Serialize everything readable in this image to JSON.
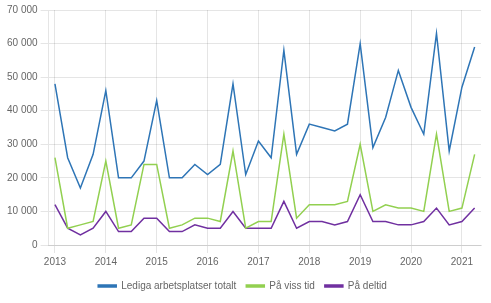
{
  "chart_data": {
    "type": "line",
    "categories": [
      "2013",
      null,
      null,
      null,
      "2014",
      null,
      null,
      null,
      "2015",
      null,
      null,
      null,
      "2016",
      null,
      null,
      null,
      "2017",
      null,
      null,
      null,
      "2018",
      null,
      null,
      null,
      "2019",
      null,
      null,
      null,
      "2020",
      null,
      null,
      null,
      "2021",
      null
    ],
    "series": [
      {
        "name": "Lediga arbetsplatser totalt",
        "color": "#2e75b6",
        "values": [
          48000,
          26000,
          17000,
          27000,
          46000,
          20000,
          20000,
          25000,
          43000,
          20000,
          20000,
          24000,
          21000,
          24000,
          48000,
          21000,
          31000,
          26000,
          58000,
          27000,
          36000,
          35000,
          34000,
          36000,
          60000,
          29000,
          38000,
          52000,
          41000,
          33000,
          63000,
          28000,
          47000,
          59000
        ]
      },
      {
        "name": "På viss tid",
        "color": "#92d050",
        "values": [
          26000,
          5000,
          6000,
          7000,
          25000,
          5000,
          6000,
          24000,
          24000,
          5000,
          6000,
          8000,
          8000,
          7000,
          28000,
          5000,
          7000,
          7000,
          33000,
          8000,
          12000,
          12000,
          12000,
          13000,
          30000,
          10000,
          12000,
          11000,
          11000,
          10000,
          33000,
          10000,
          11000,
          27000
        ]
      },
      {
        "name": "På deltid",
        "color": "#7030a0",
        "values": [
          12000,
          5000,
          3000,
          5000,
          10000,
          4000,
          4000,
          8000,
          8000,
          4000,
          4000,
          6000,
          5000,
          5000,
          10000,
          5000,
          5000,
          5000,
          13000,
          5000,
          7000,
          7000,
          6000,
          7000,
          15000,
          7000,
          7000,
          6000,
          6000,
          7000,
          11000,
          6000,
          7000,
          11000
        ]
      }
    ],
    "ylim": [
      0,
      70000
    ],
    "yticks": [
      0,
      {
        "value": 10000,
        "label": "10 000"
      },
      {
        "value": 20000,
        "label": "20 000"
      },
      {
        "value": 30000,
        "label": "30 000"
      },
      {
        "value": 40000,
        "label": "40 000"
      },
      {
        "value": 50000,
        "label": "50 000"
      },
      {
        "value": 60000,
        "label": "60 000"
      },
      {
        "value": 70000,
        "label": "70 000"
      }
    ],
    "grid": true,
    "legend": "bottom"
  }
}
